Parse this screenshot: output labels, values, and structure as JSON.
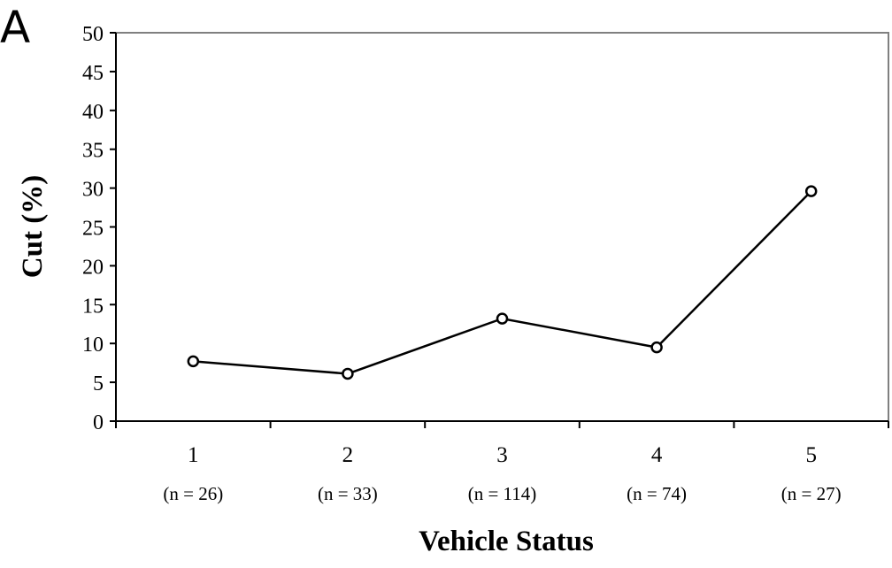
{
  "panel_label": "A",
  "chart_data": {
    "type": "line",
    "title": "",
    "xlabel": "Vehicle Status",
    "ylabel": "Cut (%)",
    "ylim": [
      0,
      50
    ],
    "yticks": [
      0,
      5,
      10,
      15,
      20,
      25,
      30,
      35,
      40,
      45,
      50
    ],
    "categories": [
      "1",
      "2",
      "3",
      "4",
      "5"
    ],
    "sample_sizes": [
      "(n = 26)",
      "(n = 33)",
      "(n = 114)",
      "(n = 74)",
      "(n = 27)"
    ],
    "series": [
      {
        "values": [
          7.7,
          6.1,
          13.2,
          9.5,
          29.6
        ]
      }
    ],
    "grid": false,
    "legend": "none",
    "colors": {
      "line": "#000000",
      "marker_fill": "#ffffff",
      "axis": "#000000",
      "frame": "#808080"
    }
  }
}
